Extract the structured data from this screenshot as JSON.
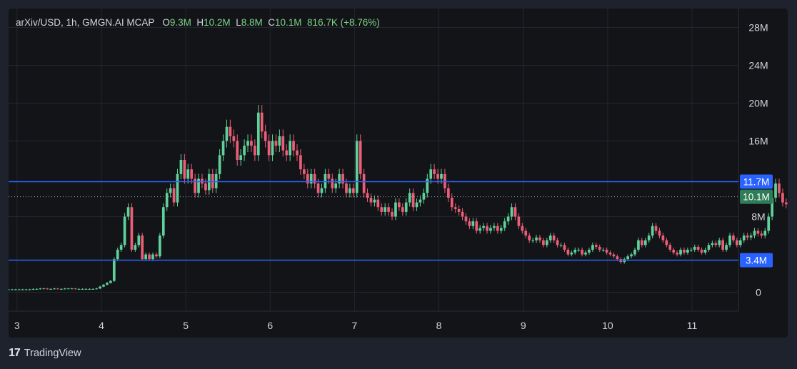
{
  "header": {
    "symbol": "arXiv/USD",
    "interval": "1h",
    "source": "GMGN.AI MCAP",
    "o_label": "O",
    "o_value": "9.3M",
    "h_label": "H",
    "h_value": "10.2M",
    "l_label": "L",
    "l_value": "8.8M",
    "c_label": "C",
    "c_value": "10.1M",
    "change": "816.7K (+8.76%)"
  },
  "footer": {
    "logo_glyph": "17",
    "brand": "TradingView"
  },
  "colors": {
    "up": "#5fd19a",
    "down": "#ec5d78",
    "level_line": "#2962ff",
    "price_badge": "#2962ff",
    "last_price_badge": "#2e7d58"
  },
  "chart_data": {
    "type": "candlestick",
    "x_ticks": [
      "3",
      "4",
      "5",
      "6",
      "7",
      "8",
      "9",
      "10",
      "11"
    ],
    "y_ticks": [
      "0",
      "8M",
      "16M",
      "20M",
      "24M",
      "28M"
    ],
    "y_tick_values": [
      0,
      8,
      16,
      20,
      24,
      28
    ],
    "ylim": [
      -2,
      30
    ],
    "xlim": [
      2.9,
      11.55
    ],
    "horizontal_lines": [
      {
        "value": 11.7,
        "label": "11.7M"
      },
      {
        "value": 3.4,
        "label": "3.4M"
      }
    ],
    "last_price": {
      "value": 10.1,
      "label": "10.1M"
    },
    "candles_start_day": 2.9,
    "candles_step_day": 0.0417,
    "closes": [
      0.3,
      0.3,
      0.3,
      0.3,
      0.3,
      0.3,
      0.3,
      0.35,
      0.35,
      0.4,
      0.4,
      0.35,
      0.35,
      0.4,
      0.35,
      0.35,
      0.4,
      0.4,
      0.4,
      0.35,
      0.35,
      0.35,
      0.35,
      0.35,
      0.35,
      0.4,
      0.6,
      0.8,
      1.0,
      1.2,
      3.5,
      4.5,
      5.0,
      8.0,
      9.0,
      4.5,
      5.0,
      6.0,
      3.5,
      4.0,
      3.5,
      4.0,
      3.8,
      6.0,
      9.0,
      10.5,
      11.0,
      9.5,
      12.5,
      14.0,
      12.0,
      13.0,
      12.0,
      10.5,
      12.0,
      11.5,
      10.8,
      12.5,
      11.0,
      12.5,
      14.5,
      16.0,
      17.5,
      16.5,
      16.0,
      14.0,
      14.5,
      15.5,
      16.0,
      15.5,
      14.5,
      19.0,
      17.0,
      16.0,
      14.5,
      16.0,
      15.5,
      16.5,
      15.0,
      14.5,
      16.0,
      15.0,
      14.5,
      13.0,
      12.5,
      11.5,
      12.5,
      11.5,
      10.5,
      11.0,
      12.5,
      12.0,
      11.0,
      11.5,
      12.5,
      11.5,
      10.5,
      11.0,
      10.5,
      16.0,
      12.5,
      10.5,
      10.0,
      9.5,
      9.8,
      9.0,
      8.5,
      9.0,
      8.5,
      8.0,
      9.5,
      9.0,
      8.5,
      9.5,
      10.5,
      9.0,
      9.5,
      9.8,
      10.5,
      12.0,
      13.0,
      12.5,
      12.0,
      12.5,
      11.0,
      10.0,
      9.0,
      8.8,
      8.5,
      8.0,
      7.5,
      7.0,
      7.5,
      6.5,
      6.8,
      7.0,
      6.5,
      6.8,
      7.0,
      6.5,
      6.8,
      7.5,
      8.0,
      9.0,
      8.0,
      7.0,
      6.5,
      6.0,
      5.5,
      5.5,
      5.8,
      5.5,
      5.0,
      5.5,
      6.0,
      5.5,
      5.0,
      5.0,
      4.5,
      4.0,
      4.2,
      4.5,
      4.5,
      4.0,
      4.2,
      4.5,
      5.0,
      4.8,
      4.5,
      4.5,
      4.2,
      4.0,
      3.8,
      3.5,
      3.2,
      3.5,
      3.8,
      4.0,
      4.5,
      5.5,
      5.0,
      5.5,
      6.0,
      7.0,
      6.5,
      6.0,
      5.5,
      5.0,
      4.5,
      4.2,
      4.0,
      4.5,
      4.2,
      4.5,
      4.5,
      4.8,
      4.5,
      4.2,
      4.5,
      5.0,
      5.2,
      5.0,
      5.5,
      4.5,
      5.0,
      6.0,
      5.5,
      5.0,
      5.5,
      6.0,
      5.8,
      6.0,
      6.5,
      6.2,
      6.0,
      6.5,
      8.0,
      10.0,
      11.5,
      10.5,
      9.5,
      9.3,
      10.1
    ]
  }
}
